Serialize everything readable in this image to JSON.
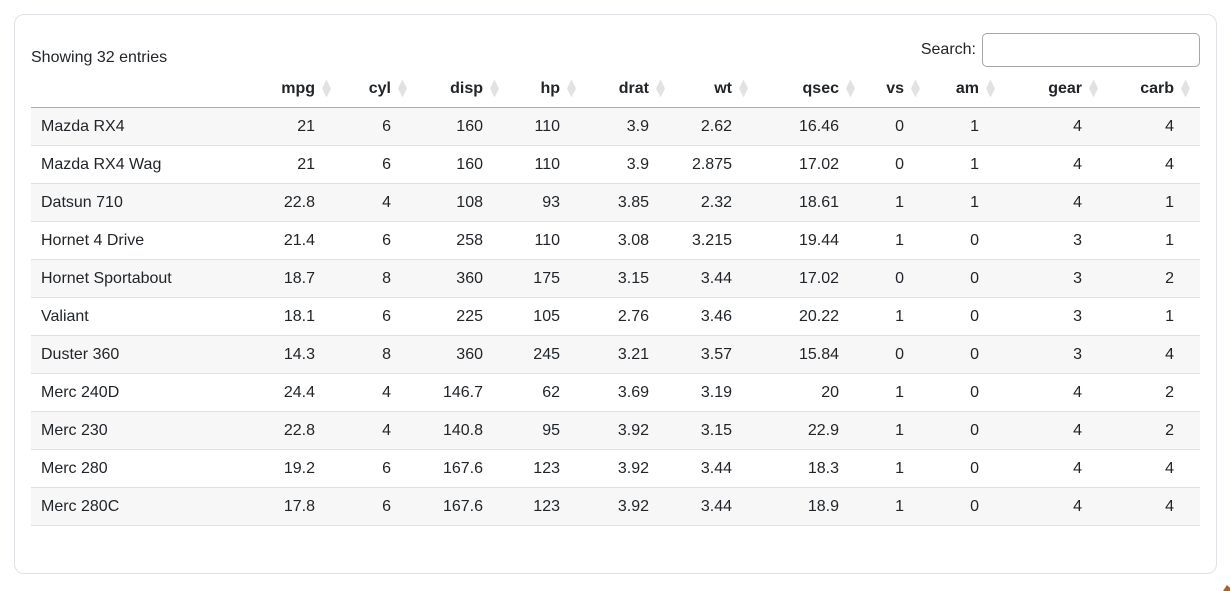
{
  "info": {
    "text": "Showing 32 entries"
  },
  "search": {
    "label": "Search:",
    "value": ""
  },
  "table": {
    "columns": [
      {
        "key": "name",
        "label": "",
        "sortable": false
      },
      {
        "key": "mpg",
        "label": "mpg",
        "sortable": true
      },
      {
        "key": "cyl",
        "label": "cyl",
        "sortable": true
      },
      {
        "key": "disp",
        "label": "disp",
        "sortable": true
      },
      {
        "key": "hp",
        "label": "hp",
        "sortable": true
      },
      {
        "key": "drat",
        "label": "drat",
        "sortable": true
      },
      {
        "key": "wt",
        "label": "wt",
        "sortable": true
      },
      {
        "key": "qsec",
        "label": "qsec",
        "sortable": true
      },
      {
        "key": "vs",
        "label": "vs",
        "sortable": true
      },
      {
        "key": "am",
        "label": "am",
        "sortable": true
      },
      {
        "key": "gear",
        "label": "gear",
        "sortable": true
      },
      {
        "key": "carb",
        "label": "carb",
        "sortable": true
      }
    ],
    "rows": [
      {
        "name": "Mazda RX4",
        "values": [
          "21",
          "6",
          "160",
          "110",
          "3.9",
          "2.62",
          "16.46",
          "0",
          "1",
          "4",
          "4"
        ]
      },
      {
        "name": "Mazda RX4 Wag",
        "values": [
          "21",
          "6",
          "160",
          "110",
          "3.9",
          "2.875",
          "17.02",
          "0",
          "1",
          "4",
          "4"
        ]
      },
      {
        "name": "Datsun 710",
        "values": [
          "22.8",
          "4",
          "108",
          "93",
          "3.85",
          "2.32",
          "18.61",
          "1",
          "1",
          "4",
          "1"
        ]
      },
      {
        "name": "Hornet 4 Drive",
        "values": [
          "21.4",
          "6",
          "258",
          "110",
          "3.08",
          "3.215",
          "19.44",
          "1",
          "0",
          "3",
          "1"
        ]
      },
      {
        "name": "Hornet Sportabout",
        "values": [
          "18.7",
          "8",
          "360",
          "175",
          "3.15",
          "3.44",
          "17.02",
          "0",
          "0",
          "3",
          "2"
        ]
      },
      {
        "name": "Valiant",
        "values": [
          "18.1",
          "6",
          "225",
          "105",
          "2.76",
          "3.46",
          "20.22",
          "1",
          "0",
          "3",
          "1"
        ]
      },
      {
        "name": "Duster 360",
        "values": [
          "14.3",
          "8",
          "360",
          "245",
          "3.21",
          "3.57",
          "15.84",
          "0",
          "0",
          "3",
          "4"
        ]
      },
      {
        "name": "Merc 240D",
        "values": [
          "24.4",
          "4",
          "146.7",
          "62",
          "3.69",
          "3.19",
          "20",
          "1",
          "0",
          "4",
          "2"
        ]
      },
      {
        "name": "Merc 230",
        "values": [
          "22.8",
          "4",
          "140.8",
          "95",
          "3.92",
          "3.15",
          "22.9",
          "1",
          "0",
          "4",
          "2"
        ]
      },
      {
        "name": "Merc 280",
        "values": [
          "19.2",
          "6",
          "167.6",
          "123",
          "3.92",
          "3.44",
          "18.3",
          "1",
          "0",
          "4",
          "4"
        ]
      },
      {
        "name": "Merc 280C",
        "values": [
          "17.8",
          "6",
          "167.6",
          "123",
          "3.92",
          "3.44",
          "18.9",
          "1",
          "0",
          "4",
          "4"
        ]
      }
    ]
  },
  "colors": {
    "card_border": "#dee2e6",
    "header_rule": "#ababab",
    "row_rule": "#dee2e6",
    "stripe": "#f7f7f7",
    "sort_icon": "#e2e2e2",
    "text": "#212529"
  }
}
